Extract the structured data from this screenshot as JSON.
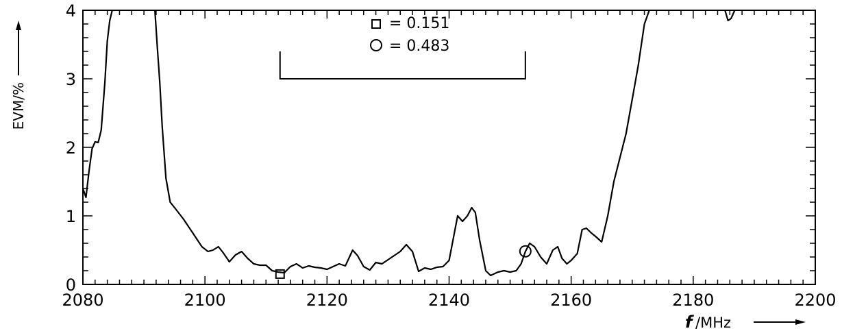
{
  "chart_data": {
    "type": "line",
    "xlabel_var": "f",
    "xlabel_unit": "/MHz",
    "ylabel": "EVM/%",
    "xlim": [
      2080,
      2200
    ],
    "ylim": [
      0,
      4
    ],
    "x_ticks": [
      2080,
      2100,
      2120,
      2140,
      2160,
      2180,
      2200
    ],
    "y_ticks": [
      0,
      1,
      2,
      3,
      4
    ],
    "x_tick_labels": [
      "2080",
      "2100",
      "2120",
      "2140",
      "2160",
      "2180",
      "2200"
    ],
    "y_tick_labels": [
      "0",
      "1",
      "2",
      "3",
      "4"
    ],
    "grid": false,
    "legend": [
      {
        "marker": "square",
        "label": "= 0.151"
      },
      {
        "marker": "circle",
        "label": "= 0.483"
      }
    ],
    "markers": [
      {
        "shape": "square",
        "x": 2112.3,
        "y": 0.151
      },
      {
        "shape": "circle",
        "x": 2152.5,
        "y": 0.483
      }
    ],
    "bracket": {
      "x_start": 2112.3,
      "x_end": 2152.5,
      "y_top": 3.4,
      "y_bottom": 3.0
    },
    "series": [
      {
        "x": [
          2080.0,
          2080.5,
          2081.0,
          2081.5,
          2082.0,
          2082.5,
          2083.0,
          2083.6,
          2084.0,
          2084.4,
          2084.8,
          2085.2,
          2091.8,
          2092.2,
          2092.6,
          2093.0,
          2093.6,
          2094.3,
          2095.2,
          2096.5,
          2098.0,
          2099.5,
          2100.5,
          2101.3,
          2102.2,
          2103.0,
          2104.0,
          2105.0,
          2106.0,
          2107.0,
          2108.0,
          2109.0,
          2110.0,
          2111.0,
          2112.0,
          2113.0,
          2114.0,
          2115.0,
          2116.0,
          2117.0,
          2118.0,
          2119.0,
          2120.0,
          2121.0,
          2122.0,
          2123.0,
          2124.2,
          2125.0,
          2126.0,
          2127.0,
          2128.0,
          2129.0,
          2130.0,
          2131.0,
          2132.0,
          2133.0,
          2134.0,
          2135.0,
          2136.0,
          2137.0,
          2138.0,
          2139.0,
          2140.0,
          2140.8,
          2141.4,
          2142.2,
          2143.0,
          2143.7,
          2144.3,
          2145.0,
          2146.0,
          2146.8,
          2148.0,
          2149.0,
          2150.0,
          2151.0,
          2151.8,
          2152.5,
          2153.2,
          2154.0,
          2155.0,
          2156.0,
          2157.0,
          2157.8,
          2158.5,
          2159.3,
          2160.0,
          2161.0,
          2161.8,
          2162.5,
          2163.3,
          2164.0,
          2165.0,
          2166.0,
          2167.0,
          2168.0,
          2169.0,
          2170.0,
          2171.0,
          2172.0,
          2172.8,
          2185.2,
          2185.7,
          2186.2,
          2186.8
        ],
        "y": [
          1.4,
          1.27,
          1.65,
          1.98,
          2.08,
          2.07,
          2.25,
          2.95,
          3.55,
          3.85,
          4.0,
          4.0,
          4.0,
          3.45,
          2.95,
          2.3,
          1.55,
          1.2,
          1.1,
          0.95,
          0.75,
          0.55,
          0.48,
          0.5,
          0.55,
          0.46,
          0.33,
          0.43,
          0.48,
          0.38,
          0.3,
          0.28,
          0.28,
          0.2,
          0.18,
          0.17,
          0.26,
          0.3,
          0.24,
          0.27,
          0.25,
          0.24,
          0.22,
          0.26,
          0.3,
          0.27,
          0.5,
          0.42,
          0.26,
          0.21,
          0.32,
          0.3,
          0.36,
          0.42,
          0.48,
          0.58,
          0.48,
          0.19,
          0.24,
          0.22,
          0.25,
          0.26,
          0.35,
          0.72,
          1.0,
          0.92,
          1.0,
          1.12,
          1.05,
          0.65,
          0.2,
          0.13,
          0.18,
          0.2,
          0.18,
          0.2,
          0.3,
          0.48,
          0.6,
          0.55,
          0.4,
          0.3,
          0.5,
          0.55,
          0.38,
          0.3,
          0.35,
          0.45,
          0.8,
          0.82,
          0.75,
          0.7,
          0.62,
          1.0,
          1.5,
          1.85,
          2.2,
          2.7,
          3.2,
          3.8,
          4.0,
          4.0,
          3.85,
          3.88,
          4.0
        ]
      }
    ]
  }
}
